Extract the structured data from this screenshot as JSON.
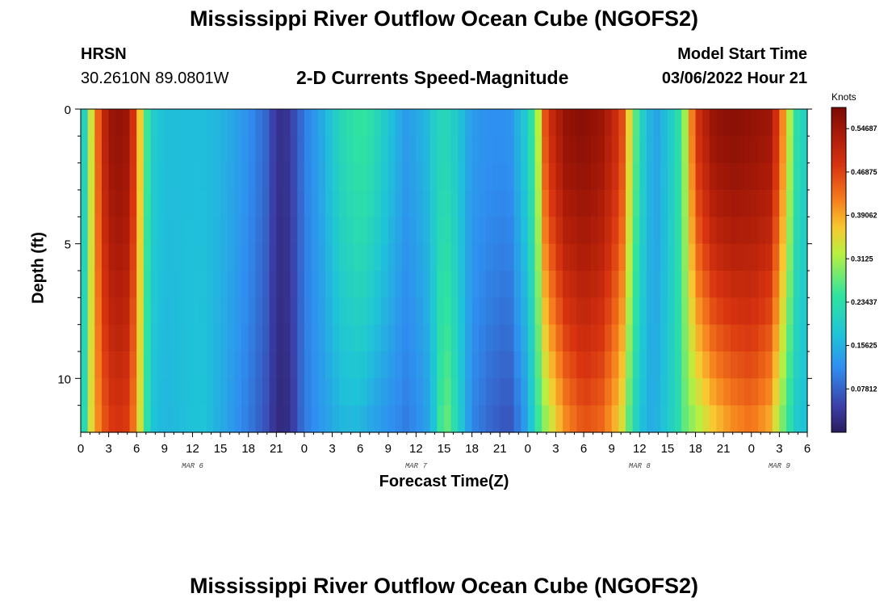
{
  "page": {
    "title": "Mississippi River Outflow Ocean Cube (NGOFS2)",
    "title_repeat": "Mississippi River Outflow Ocean Cube (NGOFS2)",
    "station_name": "HRSN",
    "station_coords": "30.2610N  89.0801W",
    "subtitle": "2-D Currents Speed-Magnitude",
    "model_start_label": "Model Start Time",
    "model_start_value": "03/06/2022 Hour 21"
  },
  "chart_data": {
    "type": "heatmap",
    "title": "Mississippi River Outflow Ocean Cube (NGOFS2)",
    "subtitle": "2-D Currents Speed-Magnitude",
    "xlabel": "Forecast Time(Z)",
    "ylabel": "Depth (ft)",
    "ylim": [
      0,
      12
    ],
    "y_inverted": true,
    "y_ticks": [
      0,
      5,
      10
    ],
    "y_tick_labels": [
      "0",
      "5",
      "10"
    ],
    "x_start_hour": 0,
    "x_end_hour": 78,
    "x_ticks_hours": [
      0,
      3,
      6,
      9,
      12,
      15,
      18,
      21,
      24,
      27,
      30,
      33,
      36,
      39,
      42,
      45,
      48,
      51,
      54,
      57,
      60,
      63,
      66,
      69,
      72,
      75,
      78
    ],
    "x_tick_labels": [
      "0",
      "3",
      "6",
      "9",
      "12",
      "15",
      "18",
      "21",
      "0",
      "3",
      "6",
      "9",
      "12",
      "15",
      "18",
      "21",
      "0",
      "3",
      "6",
      "9",
      "12",
      "15",
      "18",
      "21",
      "0",
      "3",
      "6"
    ],
    "day_labels": [
      {
        "text": "MAR 6",
        "hour": 12
      },
      {
        "text": "MAR 7",
        "hour": 36
      },
      {
        "text": "MAR 8",
        "hour": 60
      },
      {
        "text": "MAR 9",
        "hour": 75
      }
    ],
    "colorbar": {
      "label": "Knots",
      "min": 0.0,
      "max": 0.585,
      "ticks": [
        0.07812,
        0.15625,
        0.23437,
        0.3125,
        0.39062,
        0.46875,
        0.54687
      ],
      "tick_labels": [
        "0.07812",
        "0.15625",
        "0.23437",
        "0.3125",
        "0.39062",
        "0.46875",
        "0.54687"
      ]
    },
    "speed_profiles_knots": [
      {
        "hour": 0,
        "top": 0.2,
        "bottom": 0.2
      },
      {
        "hour": 0.5,
        "top": 0.21,
        "bottom": 0.23
      },
      {
        "hour": 1,
        "top": 0.32,
        "bottom": 0.34
      },
      {
        "hour": 2,
        "top": 0.46,
        "bottom": 0.42
      },
      {
        "hour": 3,
        "top": 0.55,
        "bottom": 0.47
      },
      {
        "hour": 4,
        "top": 0.56,
        "bottom": 0.48
      },
      {
        "hour": 5,
        "top": 0.55,
        "bottom": 0.47
      },
      {
        "hour": 6,
        "top": 0.45,
        "bottom": 0.4
      },
      {
        "hour": 6.5,
        "top": 0.34,
        "bottom": 0.32
      },
      {
        "hour": 7.5,
        "top": 0.2,
        "bottom": 0.18
      },
      {
        "hour": 9,
        "top": 0.17,
        "bottom": 0.16
      },
      {
        "hour": 13,
        "top": 0.17,
        "bottom": 0.18
      },
      {
        "hour": 15,
        "top": 0.16,
        "bottom": 0.15
      },
      {
        "hour": 18,
        "top": 0.12,
        "bottom": 0.1
      },
      {
        "hour": 20,
        "top": 0.08,
        "bottom": 0.06
      },
      {
        "hour": 21,
        "top": 0.03,
        "bottom": 0.02
      },
      {
        "hour": 22,
        "top": 0.03,
        "bottom": 0.02
      },
      {
        "hour": 23,
        "top": 0.06,
        "bottom": 0.05
      },
      {
        "hour": 24,
        "top": 0.1,
        "bottom": 0.1
      },
      {
        "hour": 26,
        "top": 0.15,
        "bottom": 0.13
      },
      {
        "hour": 28,
        "top": 0.22,
        "bottom": 0.16
      },
      {
        "hour": 30,
        "top": 0.25,
        "bottom": 0.16
      },
      {
        "hour": 31,
        "top": 0.24,
        "bottom": 0.14
      },
      {
        "hour": 33,
        "top": 0.18,
        "bottom": 0.12
      },
      {
        "hour": 35,
        "top": 0.13,
        "bottom": 0.1
      },
      {
        "hour": 37,
        "top": 0.16,
        "bottom": 0.13
      },
      {
        "hour": 38,
        "top": 0.2,
        "bottom": 0.18
      },
      {
        "hour": 39,
        "top": 0.22,
        "bottom": 0.3
      },
      {
        "hour": 40,
        "top": 0.2,
        "bottom": 0.24
      },
      {
        "hour": 42,
        "top": 0.13,
        "bottom": 0.11
      },
      {
        "hour": 44,
        "top": 0.12,
        "bottom": 0.08
      },
      {
        "hour": 46,
        "top": 0.12,
        "bottom": 0.06
      },
      {
        "hour": 48,
        "top": 0.2,
        "bottom": 0.14
      },
      {
        "hour": 49,
        "top": 0.3,
        "bottom": 0.24
      },
      {
        "hour": 50,
        "top": 0.48,
        "bottom": 0.3
      },
      {
        "hour": 52,
        "top": 0.56,
        "bottom": 0.4
      },
      {
        "hour": 54,
        "top": 0.57,
        "bottom": 0.45
      },
      {
        "hour": 56,
        "top": 0.55,
        "bottom": 0.43
      },
      {
        "hour": 58,
        "top": 0.48,
        "bottom": 0.35
      },
      {
        "hour": 59,
        "top": 0.34,
        "bottom": 0.25
      },
      {
        "hour": 60,
        "top": 0.22,
        "bottom": 0.18
      },
      {
        "hour": 61,
        "top": 0.16,
        "bottom": 0.15
      },
      {
        "hour": 62,
        "top": 0.14,
        "bottom": 0.16
      },
      {
        "hour": 64,
        "top": 0.22,
        "bottom": 0.22
      },
      {
        "hour": 65,
        "top": 0.32,
        "bottom": 0.28
      },
      {
        "hour": 66,
        "top": 0.48,
        "bottom": 0.3
      },
      {
        "hour": 68,
        "top": 0.56,
        "bottom": 0.36
      },
      {
        "hour": 70,
        "top": 0.57,
        "bottom": 0.4
      },
      {
        "hour": 72,
        "top": 0.56,
        "bottom": 0.42
      },
      {
        "hour": 74,
        "top": 0.55,
        "bottom": 0.38
      },
      {
        "hour": 75,
        "top": 0.46,
        "bottom": 0.3
      },
      {
        "hour": 76,
        "top": 0.33,
        "bottom": 0.24
      },
      {
        "hour": 77,
        "top": 0.22,
        "bottom": 0.18
      },
      {
        "hour": 78,
        "top": 0.2,
        "bottom": 0.17
      }
    ]
  }
}
